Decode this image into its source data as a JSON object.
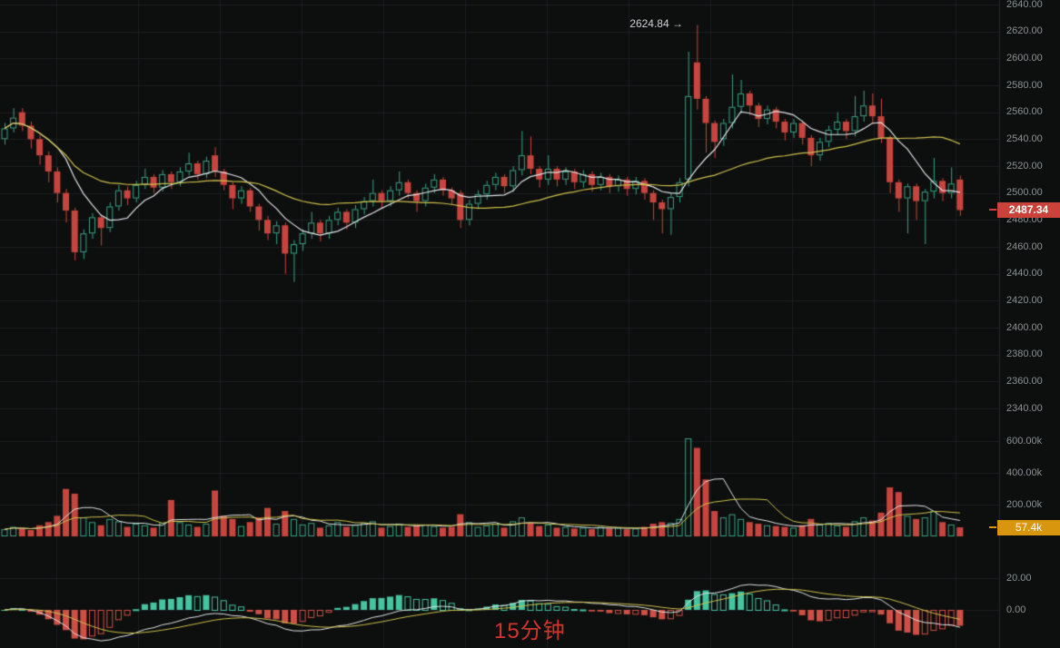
{
  "watermark": {
    "text": "15分钟"
  },
  "badges": {
    "last_price": "2487.34",
    "last_volume": "57.4k"
  },
  "annotations": {
    "high_text": "2624.84 →",
    "high_value": 2624.84
  },
  "price_axis": {
    "labels": [
      "2640.00",
      "2620.00",
      "2600.00",
      "2580.00",
      "2560.00",
      "2540.00",
      "2520.00",
      "2500.00",
      "2480.00",
      "2460.00",
      "2440.00",
      "2420.00",
      "2400.00",
      "2380.00",
      "2360.00",
      "2340.00"
    ]
  },
  "volume_axis": {
    "labels": [
      "600.00k",
      "400.00k",
      "200.00k"
    ]
  },
  "macd_axis": {
    "labels": [
      "20.00",
      "0.00"
    ]
  },
  "colors": {
    "background": "#0d0f0e",
    "grid": "#1a1e22",
    "axis_border": "#23272c",
    "axis_text": "#8b9196",
    "up": "#3aa183",
    "down": "#c7453e",
    "ma_fast": "#dde1e4",
    "ma_slow": "#cdbf4b",
    "macd_up": "#45c4a0",
    "macd_down": "#cf4f46",
    "badge_price": "#cb423a",
    "badge_volume": "#d8960f",
    "watermark_text": "#d23430",
    "annotation_text": "#ccd1d6"
  },
  "chart_data": {
    "type": "candlestick",
    "timeframe_label": "15分钟",
    "panels": [
      "price",
      "volume",
      "macd"
    ],
    "last_price": 2487.34,
    "session_high": 2624.84,
    "price_axis_range": [
      2340,
      2640
    ],
    "price_axis_step": 20,
    "volume_axis_range_k": [
      0,
      600
    ],
    "macd_axis_ticks": [
      0,
      20
    ],
    "overlays": {
      "price_ma_periods": [
        7,
        30
      ],
      "volume_ma_periods": [
        5,
        10
      ],
      "macd_params": [
        12,
        26,
        9
      ]
    },
    "candles_ohlc": [
      [
        2540,
        2552,
        2536,
        2548
      ],
      [
        2548,
        2563,
        2545,
        2556
      ],
      [
        2560,
        2563,
        2546,
        2550
      ],
      [
        2550,
        2553,
        2533,
        2540
      ],
      [
        2540,
        2543,
        2521,
        2528
      ],
      [
        2528,
        2531,
        2508,
        2516
      ],
      [
        2516,
        2519,
        2493,
        2500
      ],
      [
        2500,
        2503,
        2478,
        2487
      ],
      [
        2487,
        2489,
        2450,
        2456
      ],
      [
        2456,
        2473,
        2451,
        2470
      ],
      [
        2470,
        2485,
        2466,
        2482
      ],
      [
        2482,
        2484,
        2461,
        2474
      ],
      [
        2474,
        2493,
        2471,
        2490
      ],
      [
        2490,
        2506,
        2487,
        2502
      ],
      [
        2502,
        2505,
        2491,
        2496
      ],
      [
        2496,
        2509,
        2493,
        2506
      ],
      [
        2506,
        2518,
        2503,
        2512
      ],
      [
        2512,
        2514,
        2500,
        2504
      ],
      [
        2504,
        2517,
        2501,
        2514
      ],
      [
        2514,
        2516,
        2503,
        2508
      ],
      [
        2508,
        2519,
        2505,
        2516
      ],
      [
        2516,
        2530,
        2513,
        2522
      ],
      [
        2522,
        2524,
        2510,
        2514
      ],
      [
        2514,
        2527,
        2511,
        2524
      ],
      [
        2528,
        2534,
        2512,
        2516
      ],
      [
        2516,
        2518,
        2502,
        2506
      ],
      [
        2506,
        2508,
        2488,
        2496
      ],
      [
        2496,
        2505,
        2492,
        2502
      ],
      [
        2502,
        2504,
        2486,
        2490
      ],
      [
        2490,
        2492,
        2472,
        2480
      ],
      [
        2480,
        2483,
        2465,
        2470
      ],
      [
        2470,
        2479,
        2462,
        2476
      ],
      [
        2476,
        2478,
        2440,
        2455
      ],
      [
        2455,
        2465,
        2434,
        2462
      ],
      [
        2462,
        2473,
        2457,
        2470
      ],
      [
        2470,
        2486,
        2466,
        2478
      ],
      [
        2478,
        2480,
        2464,
        2470
      ],
      [
        2470,
        2483,
        2466,
        2480
      ],
      [
        2480,
        2489,
        2476,
        2486
      ],
      [
        2486,
        2488,
        2473,
        2478
      ],
      [
        2478,
        2491,
        2474,
        2488
      ],
      [
        2488,
        2497,
        2484,
        2494
      ],
      [
        2494,
        2510,
        2490,
        2500
      ],
      [
        2500,
        2502,
        2489,
        2494
      ],
      [
        2494,
        2505,
        2490,
        2502
      ],
      [
        2502,
        2516,
        2498,
        2508
      ],
      [
        2508,
        2510,
        2496,
        2500
      ],
      [
        2500,
        2502,
        2486,
        2494
      ],
      [
        2494,
        2507,
        2490,
        2504
      ],
      [
        2504,
        2514,
        2500,
        2510
      ],
      [
        2510,
        2512,
        2498,
        2502
      ],
      [
        2502,
        2504,
        2491,
        2496
      ],
      [
        2500,
        2502,
        2474,
        2480
      ],
      [
        2480,
        2495,
        2476,
        2492
      ],
      [
        2492,
        2502,
        2488,
        2499
      ],
      [
        2499,
        2509,
        2495,
        2506
      ],
      [
        2506,
        2515,
        2502,
        2512
      ],
      [
        2512,
        2514,
        2500,
        2505
      ],
      [
        2505,
        2520,
        2501,
        2517
      ],
      [
        2517,
        2546,
        2513,
        2528
      ],
      [
        2528,
        2542,
        2514,
        2518
      ],
      [
        2518,
        2520,
        2504,
        2510
      ],
      [
        2510,
        2528,
        2506,
        2518
      ],
      [
        2518,
        2520,
        2505,
        2510
      ],
      [
        2510,
        2519,
        2506,
        2516
      ],
      [
        2516,
        2518,
        2503,
        2508
      ],
      [
        2508,
        2517,
        2504,
        2514
      ],
      [
        2514,
        2516,
        2501,
        2506
      ],
      [
        2506,
        2515,
        2502,
        2512
      ],
      [
        2512,
        2514,
        2500,
        2505
      ],
      [
        2505,
        2513,
        2501,
        2510
      ],
      [
        2510,
        2512,
        2498,
        2503
      ],
      [
        2503,
        2512,
        2499,
        2509
      ],
      [
        2509,
        2511,
        2495,
        2500
      ],
      [
        2500,
        2502,
        2480,
        2493
      ],
      [
        2493,
        2495,
        2470,
        2488
      ],
      [
        2488,
        2500,
        2469,
        2497
      ],
      [
        2497,
        2511,
        2493,
        2508
      ],
      [
        2510,
        2605,
        2505,
        2572
      ],
      [
        2597,
        2624.84,
        2562,
        2570
      ],
      [
        2570,
        2572,
        2530,
        2552
      ],
      [
        2552,
        2554,
        2526,
        2538
      ],
      [
        2540,
        2555,
        2535,
        2552
      ],
      [
        2552,
        2588,
        2548,
        2564
      ],
      [
        2564,
        2584,
        2559,
        2574
      ],
      [
        2574,
        2576,
        2558,
        2565
      ],
      [
        2565,
        2567,
        2549,
        2555
      ],
      [
        2555,
        2565,
        2551,
        2562
      ],
      [
        2562,
        2564,
        2548,
        2553
      ],
      [
        2553,
        2555,
        2539,
        2545
      ],
      [
        2545,
        2555,
        2541,
        2552
      ],
      [
        2552,
        2554,
        2536,
        2541
      ],
      [
        2541,
        2543,
        2520,
        2528
      ],
      [
        2528,
        2541,
        2524,
        2538
      ],
      [
        2538,
        2550,
        2534,
        2547
      ],
      [
        2547,
        2560,
        2543,
        2553
      ],
      [
        2553,
        2555,
        2540,
        2546
      ],
      [
        2546,
        2572,
        2542,
        2557
      ],
      [
        2557,
        2576,
        2553,
        2565
      ],
      [
        2565,
        2574,
        2551,
        2557
      ],
      [
        2557,
        2570,
        2537,
        2541
      ],
      [
        2541,
        2543,
        2500,
        2508
      ],
      [
        2508,
        2510,
        2486,
        2496
      ],
      [
        2496,
        2507,
        2470,
        2505
      ],
      [
        2505,
        2507,
        2480,
        2494
      ],
      [
        2494,
        2503,
        2462,
        2501
      ],
      [
        2501,
        2526,
        2496,
        2509
      ],
      [
        2509,
        2511,
        2494,
        2500
      ],
      [
        2500,
        2519,
        2496,
        2507
      ],
      [
        2510,
        2513,
        2483,
        2487.34
      ]
    ],
    "volumes_k": [
      45,
      60,
      50,
      40,
      70,
      90,
      130,
      300,
      270,
      120,
      90,
      70,
      110,
      95,
      60,
      80,
      70,
      55,
      85,
      230,
      90,
      75,
      60,
      80,
      290,
      130,
      110,
      65,
      90,
      120,
      180,
      80,
      160,
      110,
      75,
      85,
      55,
      70,
      90,
      60,
      75,
      85,
      95,
      55,
      65,
      80,
      60,
      70,
      75,
      65,
      55,
      60,
      140,
      90,
      60,
      70,
      80,
      55,
      95,
      120,
      85,
      65,
      75,
      55,
      60,
      50,
      55,
      45,
      60,
      50,
      55,
      45,
      50,
      60,
      80,
      90,
      85,
      110,
      620,
      560,
      360,
      160,
      120,
      140,
      110,
      90,
      80,
      70,
      65,
      60,
      55,
      70,
      110,
      75,
      85,
      70,
      60,
      95,
      120,
      100,
      150,
      310,
      280,
      130,
      110,
      120,
      160,
      90,
      75,
      57.4
    ]
  }
}
